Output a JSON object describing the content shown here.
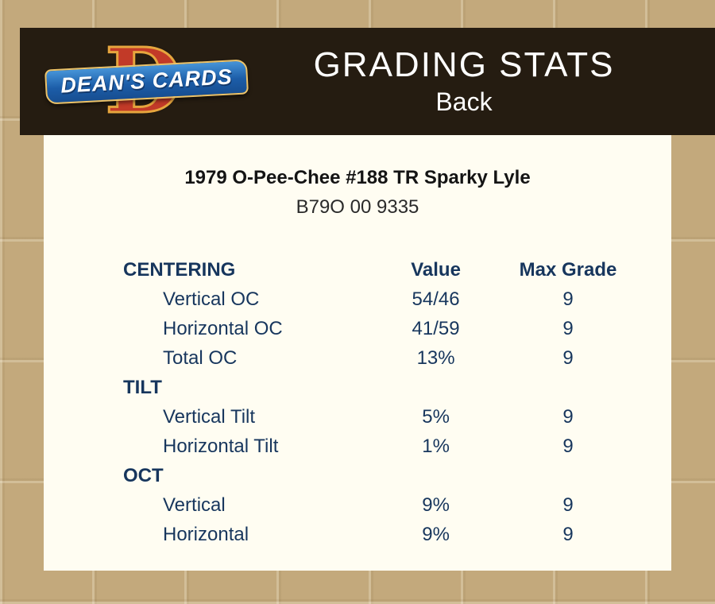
{
  "header": {
    "title": "GRADING STATS",
    "subtitle": "Back",
    "logo": {
      "letter": "D",
      "text": "DEAN'S CARDS"
    }
  },
  "card": {
    "title": "1979 O-Pee-Chee #188 TR Sparky Lyle",
    "serial": "B79O 00 9335"
  },
  "table": {
    "columns": [
      "CENTERING",
      "Value",
      "Max Grade"
    ],
    "rows": [
      {
        "type": "data",
        "label": "Vertical OC",
        "value": "54/46",
        "max": "9"
      },
      {
        "type": "data",
        "label": "Horizontal OC",
        "value": "41/59",
        "max": "9"
      },
      {
        "type": "data",
        "label": "Total OC",
        "value": "13%",
        "max": "9"
      },
      {
        "type": "section",
        "label": "TILT",
        "value": "",
        "max": ""
      },
      {
        "type": "data",
        "label": "Vertical Tilt",
        "value": "5%",
        "max": "9"
      },
      {
        "type": "data",
        "label": "Horizontal Tilt",
        "value": "1%",
        "max": "9"
      },
      {
        "type": "section",
        "label": "OCT",
        "value": "",
        "max": ""
      },
      {
        "type": "data",
        "label": "Vertical",
        "value": "9%",
        "max": "9"
      },
      {
        "type": "data",
        "label": "Horizontal",
        "value": "9%",
        "max": "9"
      }
    ]
  },
  "colors": {
    "page_background": "#c3a97c",
    "header_background": "#251c11",
    "panel_background": "#fffdf2",
    "table_text_blue": "#17365d",
    "logo_red": "#c23a28",
    "logo_gold": "#e6a63e",
    "logo_blue": "#1c5da8",
    "header_text": "#ffffff"
  }
}
